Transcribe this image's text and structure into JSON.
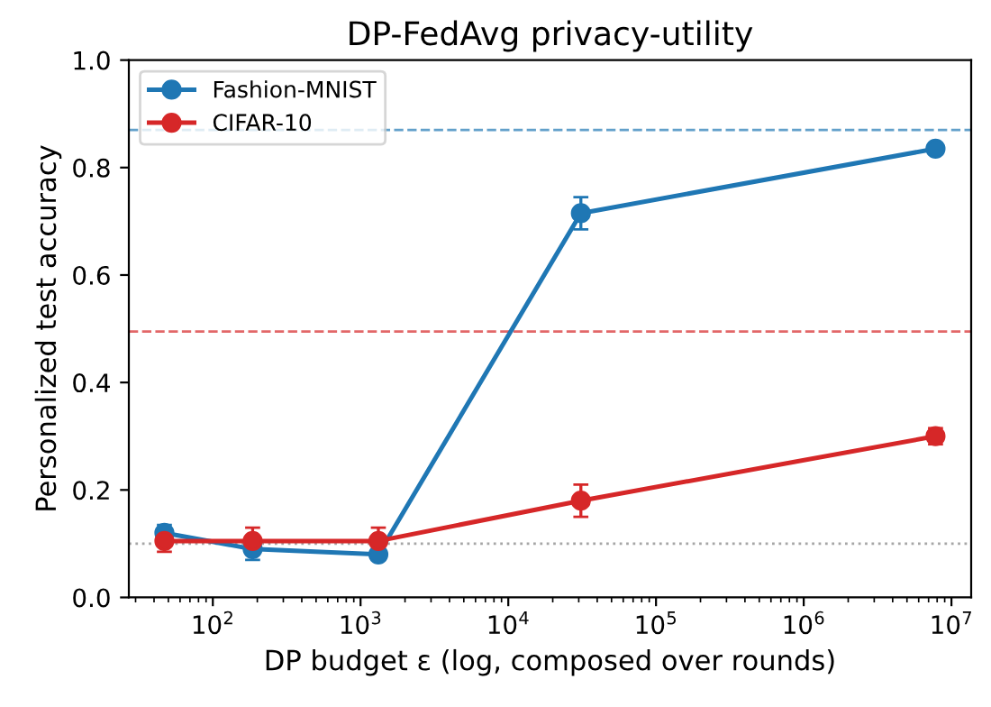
{
  "chart_data": {
    "type": "line",
    "title": "DP-FedAvg privacy-utility",
    "xlabel": "DP budget ε (log, composed over rounds)",
    "ylabel": "Personalized test accuracy",
    "x": [
      47,
      186,
      1320,
      31000,
      7800000
    ],
    "series": [
      {
        "name": "Fashion-MNIST",
        "color": "#1f77b4",
        "values": [
          0.12,
          0.09,
          0.08,
          0.715,
          0.835
        ],
        "errors": [
          0.015,
          0.02,
          0.01,
          0.03,
          0.01
        ]
      },
      {
        "name": "CIFAR-10",
        "color": "#d62728",
        "values": [
          0.105,
          0.105,
          0.105,
          0.18,
          0.3
        ],
        "errors": [
          0.02,
          0.025,
          0.025,
          0.03,
          0.015
        ]
      }
    ],
    "ref_lines": [
      {
        "axis": "y",
        "value": 0.87,
        "label": null,
        "color": "#1f77b4",
        "line_style": "dashed"
      },
      {
        "axis": "y",
        "value": 0.495,
        "label": null,
        "color": "#d62728",
        "line_style": "dashed"
      },
      {
        "axis": "y",
        "value": 0.1,
        "label": null,
        "color": "#808080",
        "line_style": "dotted"
      }
    ],
    "log": "x",
    "xlim": [
      27,
      13600000
    ],
    "xticks": [
      {
        "value": 100,
        "label": "10$^{2}$"
      },
      {
        "value": 1000,
        "label": "10$^{3}$"
      },
      {
        "value": 10000,
        "label": "10$^{4}$"
      },
      {
        "value": 100000,
        "label": "10$^{5}$"
      },
      {
        "value": 1000000,
        "label": "10$^{6}$"
      },
      {
        "value": 10000000,
        "label": "10$^{7}$"
      }
    ],
    "ylim": [
      0,
      1
    ],
    "yticks": [
      {
        "value": 0,
        "label": "0.0"
      },
      0.2,
      0.4,
      0.6,
      0.8,
      {
        "value": 1,
        "label": "1.0"
      }
    ],
    "grid": false,
    "legend": "top left",
    "marker": "circle",
    "line_style": "solid"
  }
}
